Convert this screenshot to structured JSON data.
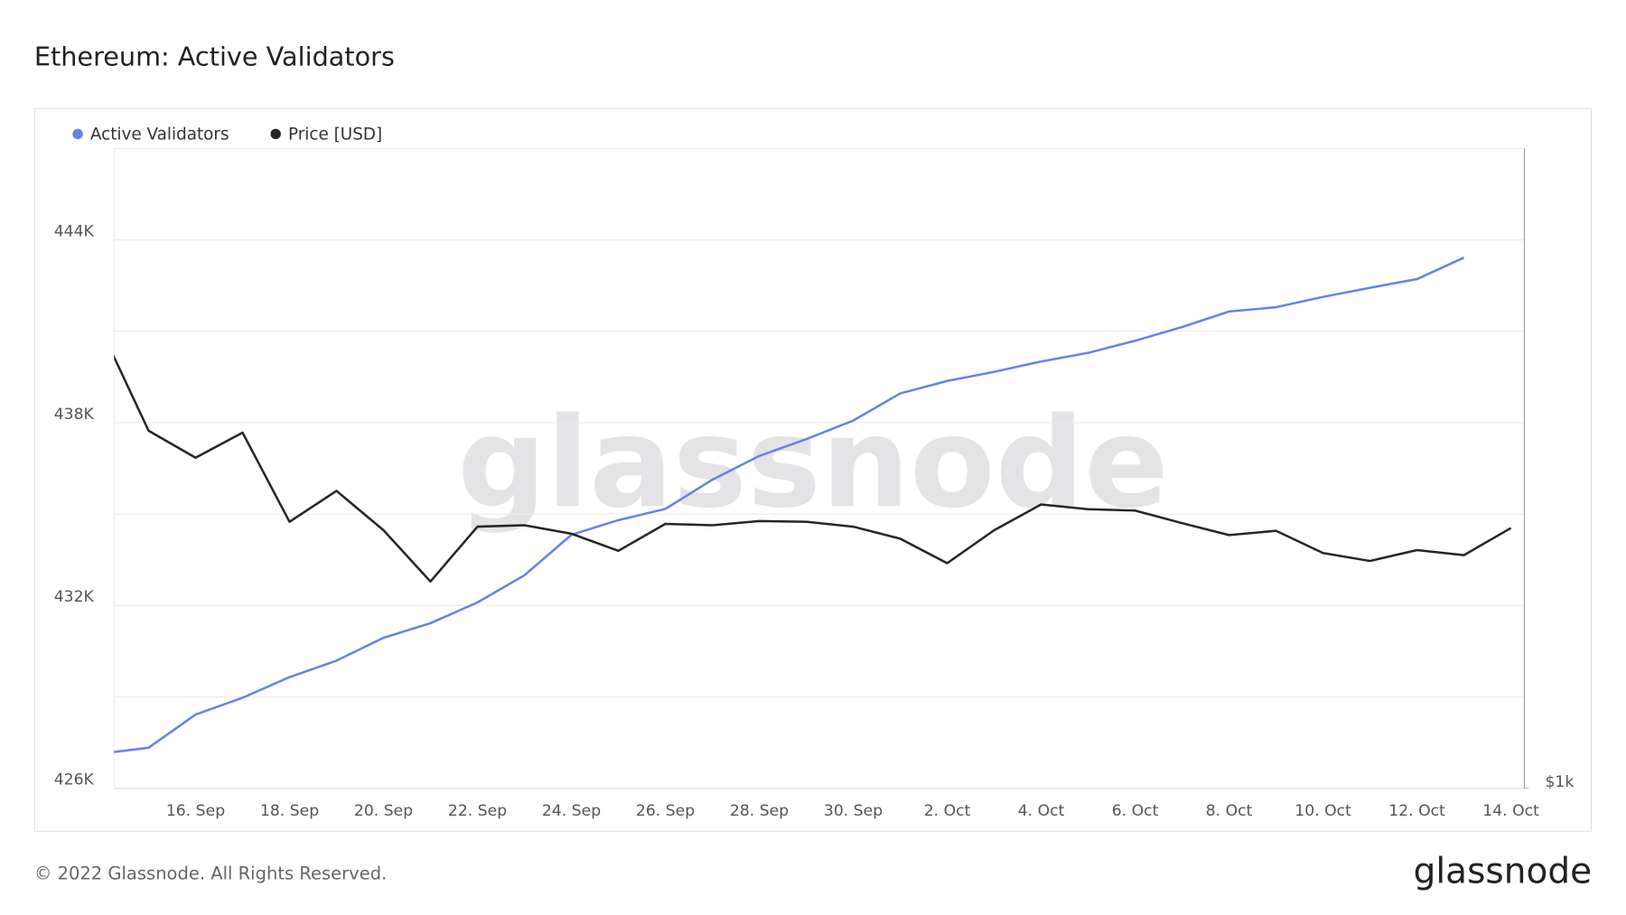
{
  "chart_data": {
    "type": "line",
    "title": "Ethereum: Active Validators",
    "watermark": "glassnode",
    "footer": "© 2022 Glassnode. All Rights Reserved.",
    "brand": "glassnode",
    "categories": [
      null,
      null,
      "16. Sep",
      null,
      "18. Sep",
      null,
      "20. Sep",
      null,
      "22. Sep",
      null,
      "24. Sep",
      null,
      "26. Sep",
      null,
      "28. Sep",
      null,
      "30. Sep",
      null,
      "2. Oct",
      null,
      "4. Oct",
      null,
      "6. Oct",
      null,
      "8. Oct",
      null,
      "10. Oct",
      null,
      "12. Oct",
      null,
      "14. Oct"
    ],
    "series": [
      {
        "name": "Active Validators",
        "color": "#6782e6",
        "axis": "y",
        "values": [
          427140,
          427330,
          428420,
          428970,
          429650,
          430190,
          430940,
          431420,
          432100,
          432990,
          434320,
          434800,
          435170,
          436130,
          436910,
          437460,
          438070,
          438960,
          439370,
          439670,
          440010,
          440290,
          440690,
          441140,
          441650,
          441790,
          442130,
          442430,
          442710,
          443420,
          null
        ]
      },
      {
        "name": "Price [USD]",
        "color": "#262626",
        "axis": "y2",
        "values": [
          1636,
          1469,
          1427,
          1466,
          1332,
          1377,
          1320,
          1249,
          1325,
          1327,
          1315,
          1291,
          1329,
          1327,
          1333,
          1332,
          1325,
          1308,
          1274,
          1320,
          1357,
          1350,
          1348,
          1330,
          1313,
          1319,
          1288,
          1277,
          1292,
          1285,
          1323
        ]
      }
    ],
    "ylim": [
      426000,
      447000
    ],
    "yticks": [
      {
        "value": 426000,
        "label": "426K"
      },
      {
        "value": 432000,
        "label": "432K"
      },
      {
        "value": 438000,
        "label": "438K"
      },
      {
        "value": 444000,
        "label": "444K"
      }
    ],
    "y_minor_grid": [
      429000,
      435000,
      441000
    ],
    "y2lim": [
      1000,
      1990
    ],
    "y2ticks": [
      {
        "value": 1000,
        "label": "$1k"
      }
    ],
    "y2_log": true,
    "grid": true
  }
}
